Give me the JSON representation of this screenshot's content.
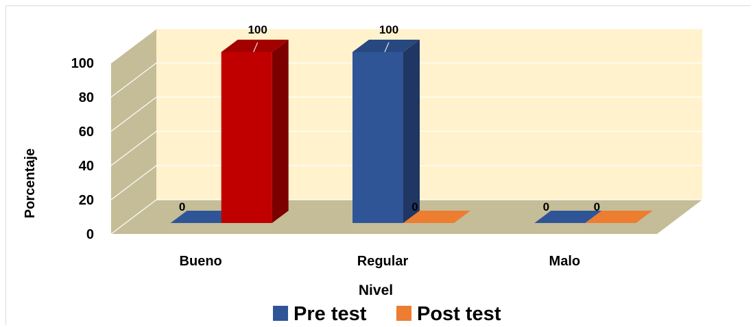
{
  "chart_data": {
    "type": "bar",
    "title": "",
    "xlabel": "Nivel",
    "ylabel": "Porcentaje",
    "categories": [
      "Bueno",
      "Regular",
      "Malo"
    ],
    "y_ticks": [
      "0",
      "20",
      "40",
      "60",
      "80",
      "100"
    ],
    "ylim": [
      0,
      100
    ],
    "grid": true,
    "legend_position": "bottom",
    "series": [
      {
        "name": "Pre test",
        "values": [
          0,
          100,
          0
        ],
        "color": "#2f5597",
        "labels": [
          "0",
          "100",
          "0"
        ]
      },
      {
        "name": "Post test",
        "values": [
          100,
          0,
          0
        ],
        "color": "#ed7d31",
        "labels": [
          "100",
          "0",
          "0"
        ]
      }
    ],
    "highlight_bar": {
      "series": "Post test",
      "category": "Bueno",
      "color": "#c00000"
    },
    "wall_color": "#fff2cc",
    "floor_color": "#c4bd97"
  }
}
